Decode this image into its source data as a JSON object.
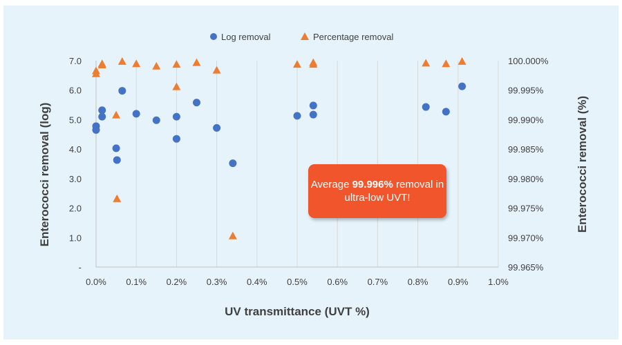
{
  "colors": {
    "background": "#e7f3fb",
    "log_series": "#4472c4",
    "pct_series": "#ed7d31",
    "callout": "#f0552b",
    "grid": "#d9d9d9"
  },
  "callout": {
    "prefix": "Average ",
    "highlight": "99.996%",
    "rest": " removal in ultra-low UVT!"
  },
  "chart_data": {
    "type": "scatter",
    "title": "",
    "xlabel": "UV transmittance (UVT %)",
    "ylabel": "Enterococci removal (log)",
    "y2label": "Enterococci removal (%)",
    "xlim": [
      0,
      1.0
    ],
    "ylim": [
      0,
      7.0
    ],
    "y2lim": [
      99.965,
      100.0
    ],
    "grid": "vertical",
    "legend_position": "top",
    "x_ticks": [
      "0.0%",
      "0.1%",
      "0.2%",
      "0.3%",
      "0.4%",
      "0.5%",
      "0.6%",
      "0.7%",
      "0.8%",
      "0.9%",
      "1.0%"
    ],
    "y_ticks": [
      "-",
      "1.0",
      "2.0",
      "3.0",
      "4.0",
      "5.0",
      "6.0",
      "7.0"
    ],
    "y2_ticks": [
      "99.965%",
      "99.970%",
      "99.975%",
      "99.980%",
      "99.985%",
      "99.990%",
      "99.995%",
      "100.000%"
    ],
    "series": [
      {
        "name": "Log removal",
        "marker": "circle",
        "axis": "left",
        "x": [
          0.0,
          0.0,
          0.015,
          0.015,
          0.05,
          0.052,
          0.065,
          0.1,
          0.15,
          0.2,
          0.2,
          0.25,
          0.3,
          0.34,
          0.5,
          0.54,
          0.54,
          0.82,
          0.87,
          0.91
        ],
        "y": [
          4.78,
          4.65,
          5.32,
          5.1,
          4.03,
          3.63,
          5.98,
          5.2,
          4.98,
          5.1,
          4.35,
          5.58,
          4.72,
          3.52,
          5.13,
          5.48,
          5.17,
          5.43,
          5.27,
          6.13
        ]
      },
      {
        "name": "Percentage removal",
        "marker": "triangle",
        "axis": "right",
        "x": [
          0.0,
          0.0,
          0.015,
          0.015,
          0.05,
          0.052,
          0.065,
          0.1,
          0.15,
          0.2,
          0.2,
          0.25,
          0.3,
          0.34,
          0.5,
          0.54,
          0.54,
          0.82,
          0.87,
          0.91
        ],
        "y": [
          99.9983,
          99.9978,
          99.9995,
          99.9993,
          99.9908,
          99.9766,
          99.9999,
          99.9995,
          99.9991,
          99.9994,
          99.9956,
          99.9997,
          99.9984,
          99.9703,
          99.9994,
          99.9997,
          99.9994,
          99.9996,
          99.9995,
          99.9999
        ]
      }
    ]
  }
}
